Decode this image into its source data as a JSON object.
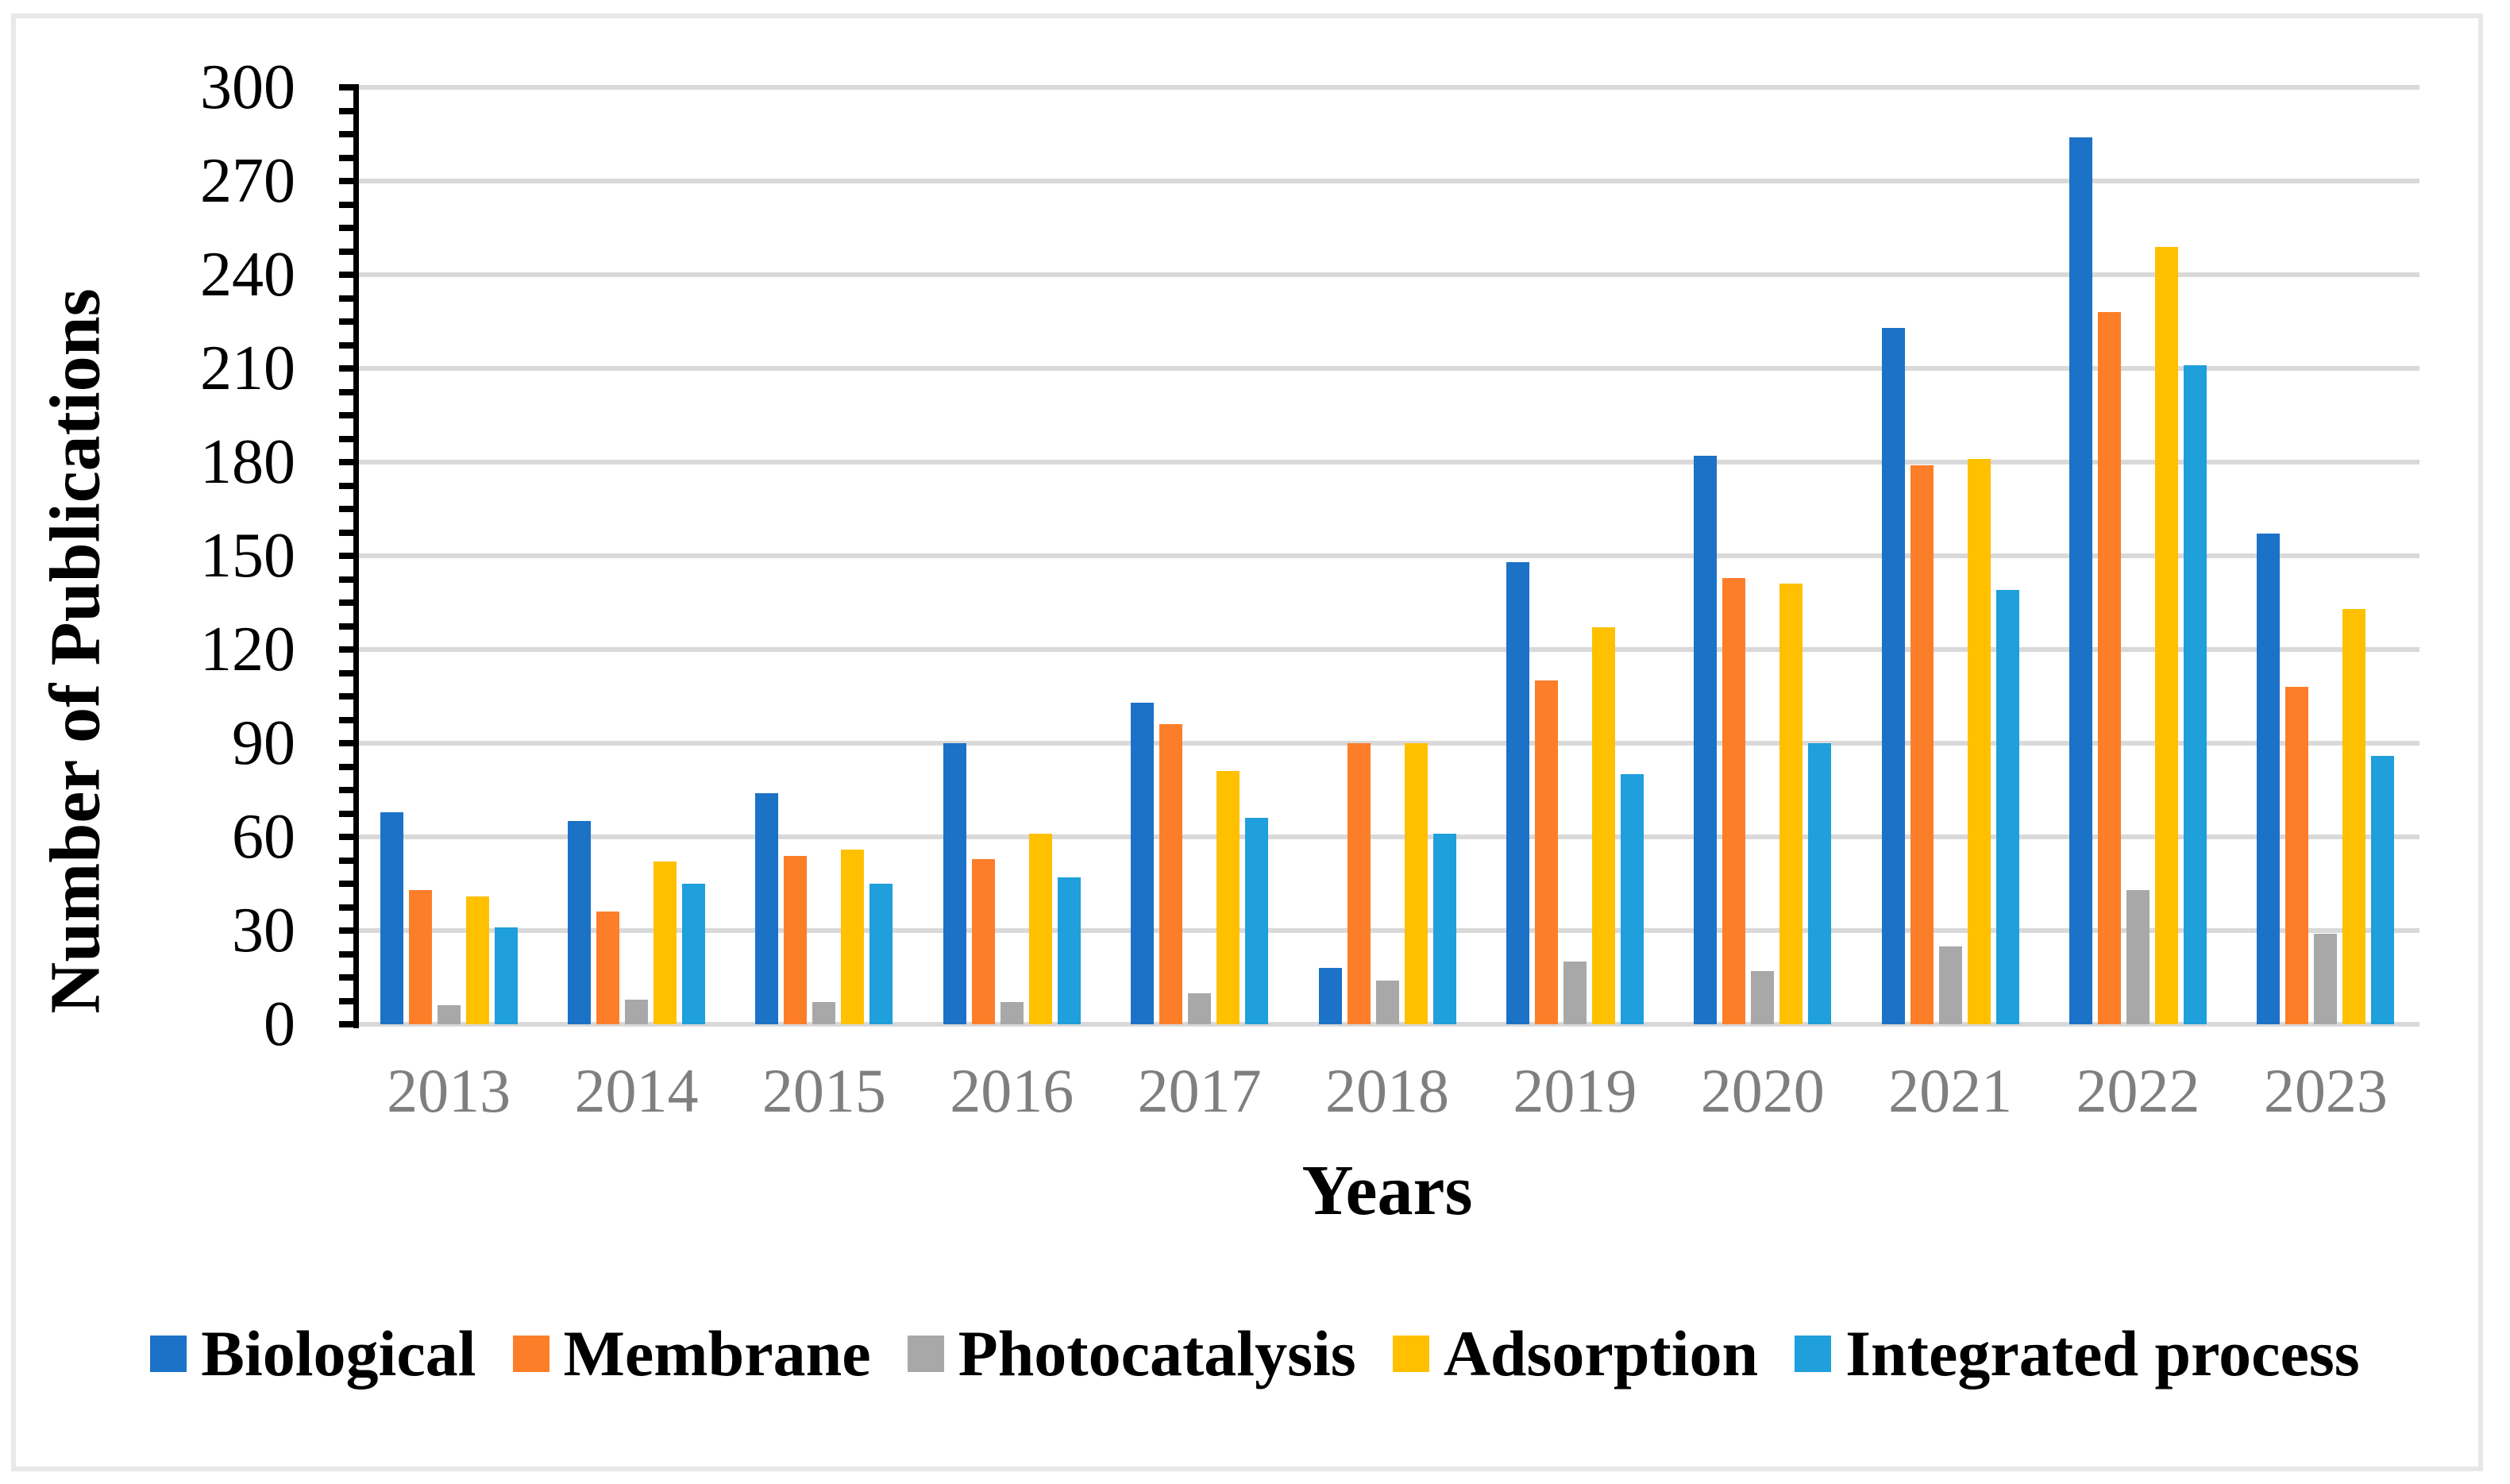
{
  "chart_data": {
    "type": "bar",
    "title": "",
    "xlabel": "Years",
    "ylabel": "Number of Publications",
    "categories": [
      "2013",
      "2014",
      "2015",
      "2016",
      "2017",
      "2018",
      "2019",
      "2020",
      "2021",
      "2022",
      "2023"
    ],
    "series": [
      {
        "name": "Biological",
        "color": "#1B72C6",
        "values": [
          68,
          65,
          74,
          90,
          103,
          18,
          148,
          182,
          223,
          284,
          157
        ]
      },
      {
        "name": "Membrane",
        "color": "#FD7E28",
        "values": [
          43,
          36,
          54,
          53,
          96,
          90,
          110,
          143,
          179,
          228,
          108
        ]
      },
      {
        "name": "Photocatalysis",
        "color": "#A8A8A8",
        "values": [
          6,
          8,
          7,
          7,
          10,
          14,
          20,
          17,
          25,
          43,
          29
        ]
      },
      {
        "name": "Adsorption",
        "color": "#FFC000",
        "values": [
          41,
          52,
          56,
          61,
          81,
          90,
          127,
          141,
          181,
          249,
          133
        ]
      },
      {
        "name": "Integrated process",
        "color": "#1F9FDC",
        "values": [
          31,
          45,
          45,
          47,
          66,
          61,
          80,
          90,
          139,
          211,
          86
        ]
      }
    ],
    "ylim": [
      0,
      300
    ],
    "y_major_step": 30,
    "y_minor_step": 7.5,
    "y_tick_labels": [
      "0",
      "30",
      "60",
      "90",
      "120",
      "150",
      "180",
      "210",
      "240",
      "270",
      "300"
    ],
    "grid": "horizontal-major",
    "legend_position": "bottom",
    "colors": {
      "gridline": "#D9D9D9",
      "axis_line": "#000000",
      "tick_label": "#000000",
      "year_label": "#7F7F7F",
      "frame_border": "#E8E8E8",
      "background": "#FFFFFF"
    }
  }
}
